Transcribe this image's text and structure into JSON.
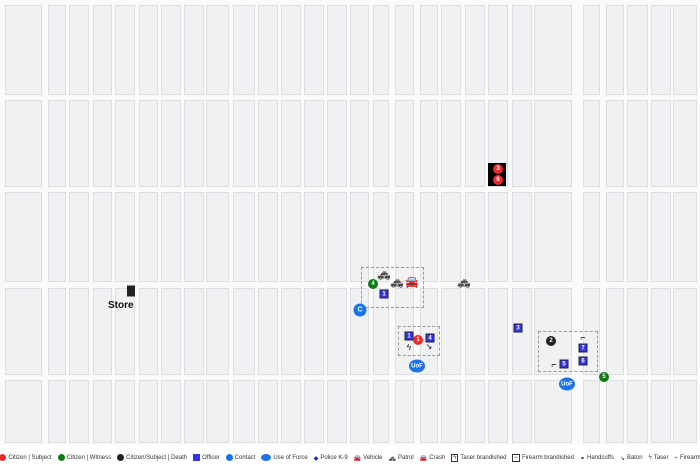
{
  "map": {
    "place_label": "Store",
    "markers": {
      "citizen_subject": [
        "1",
        "3",
        "6"
      ],
      "citizen_witness": [
        "4",
        "5"
      ],
      "citizen_death": [
        "2"
      ],
      "officers": [
        "1",
        "1",
        "4",
        "3",
        "7",
        "6",
        "5"
      ],
      "contact": "C",
      "use_of_force": "UoF"
    }
  },
  "colors": {
    "subject": "#f02a2a",
    "witness": "#0e7a12",
    "death": "#222222",
    "officer": "#3333ee",
    "contact": "#1a73e8"
  },
  "legend": [
    {
      "label": "Citizen | Subject",
      "icon": "red-circle"
    },
    {
      "label": "Citizen | Witness",
      "icon": "green-circle"
    },
    {
      "label": "Citizen/Subject | Death",
      "icon": "black-circle"
    },
    {
      "label": "Officer",
      "icon": "blue-square"
    },
    {
      "label": "Contact",
      "icon": "contact-circle",
      "glyph": "C"
    },
    {
      "label": "Use of Force",
      "icon": "uof-circle",
      "glyph": "UoF"
    },
    {
      "label": "Police K-9",
      "icon": "paw"
    },
    {
      "label": "Vehicle",
      "icon": "car"
    },
    {
      "label": "Patrol",
      "icon": "police-car"
    },
    {
      "label": "Crash",
      "icon": "crash"
    },
    {
      "label": "Taser brandished",
      "icon": "taser-box"
    },
    {
      "label": "Firearm brandished",
      "icon": "firearm-box"
    },
    {
      "label": "Handcuffs",
      "icon": "handcuffs"
    },
    {
      "label": "Baton",
      "icon": "baton"
    },
    {
      "label": "Taser",
      "icon": "taser"
    },
    {
      "label": "Firearm",
      "icon": "firearm"
    }
  ]
}
